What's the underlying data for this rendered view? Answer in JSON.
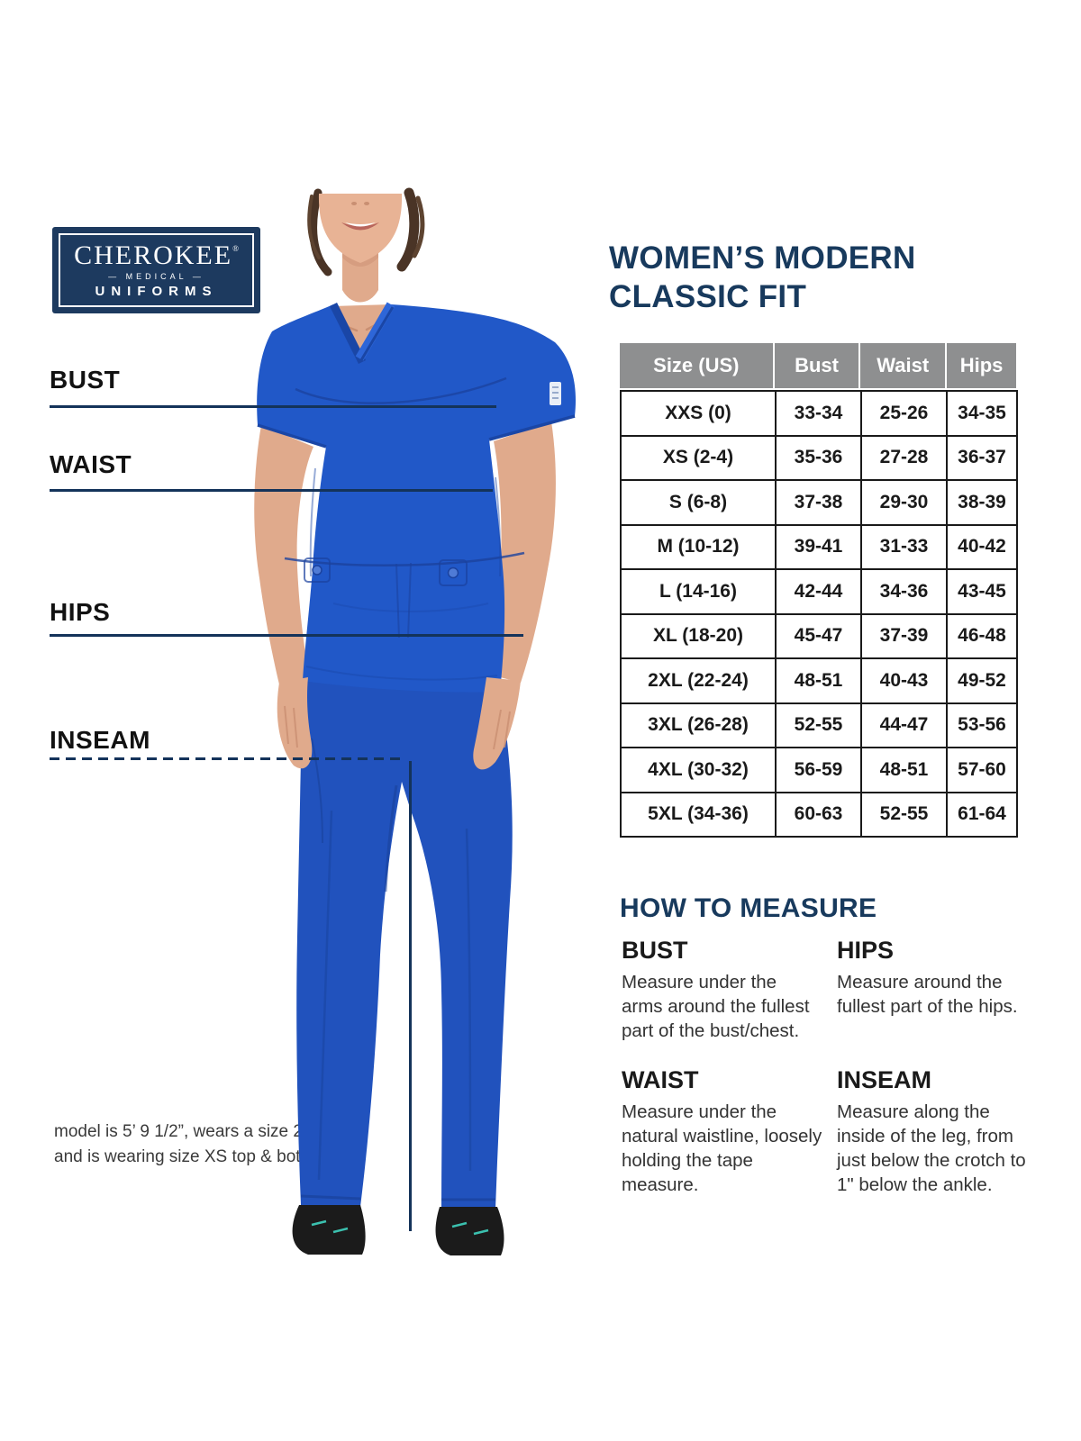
{
  "brand": {
    "name": "CHEROKEE",
    "registered": "®",
    "medical": "— MEDICAL —",
    "uniforms": "UNIFORMS"
  },
  "title": {
    "line1": "WOMEN’S MODERN",
    "line2": "CLASSIC FIT"
  },
  "measurement_labels": [
    {
      "label": "BUST"
    },
    {
      "label": "WAIST"
    },
    {
      "label": "HIPS"
    },
    {
      "label": "INSEAM"
    }
  ],
  "size_chart": {
    "type": "table",
    "columns": [
      "Size (US)",
      "Bust",
      "Waist",
      "Hips"
    ],
    "rows": [
      [
        "XXS (0)",
        "33-34",
        "25-26",
        "34-35"
      ],
      [
        "XS (2-4)",
        "35-36",
        "27-28",
        "36-37"
      ],
      [
        "S (6-8)",
        "37-38",
        "29-30",
        "38-39"
      ],
      [
        "M (10-12)",
        "39-41",
        "31-33",
        "40-42"
      ],
      [
        "L (14-16)",
        "42-44",
        "34-36",
        "43-45"
      ],
      [
        "XL (18-20)",
        "45-47",
        "37-39",
        "46-48"
      ],
      [
        "2XL (22-24)",
        "48-51",
        "40-43",
        "49-52"
      ],
      [
        "3XL (26-28)",
        "52-55",
        "44-47",
        "53-56"
      ],
      [
        "4XL (30-32)",
        "56-59",
        "48-51",
        "57-60"
      ],
      [
        "5XL (34-36)",
        "60-63",
        "52-55",
        "61-64"
      ]
    ]
  },
  "how_to_measure": {
    "heading": "HOW TO MEASURE",
    "sections": [
      {
        "title": "BUST",
        "text": "Measure under the arms around the fullest part of the bust/chest."
      },
      {
        "title": "HIPS",
        "text": "Measure around the fullest part of the hips."
      },
      {
        "title": "WAIST",
        "text": "Measure under the natural waistline, loosely holding the tape measure."
      },
      {
        "title": "INSEAM",
        "text": "Measure along the inside of the leg, from just below the crotch to 1\" below the ankle."
      }
    ]
  },
  "model_note": {
    "line1": "model is 5’ 9 1/2”, wears a size 2 dress",
    "line2": "and is wearing size XS top & bottom."
  },
  "colors": {
    "navy": "#1d3a5f",
    "royal_blue": "#2158c8",
    "header_gray": "#8e8f90",
    "text_black": "#1a1a1a"
  }
}
